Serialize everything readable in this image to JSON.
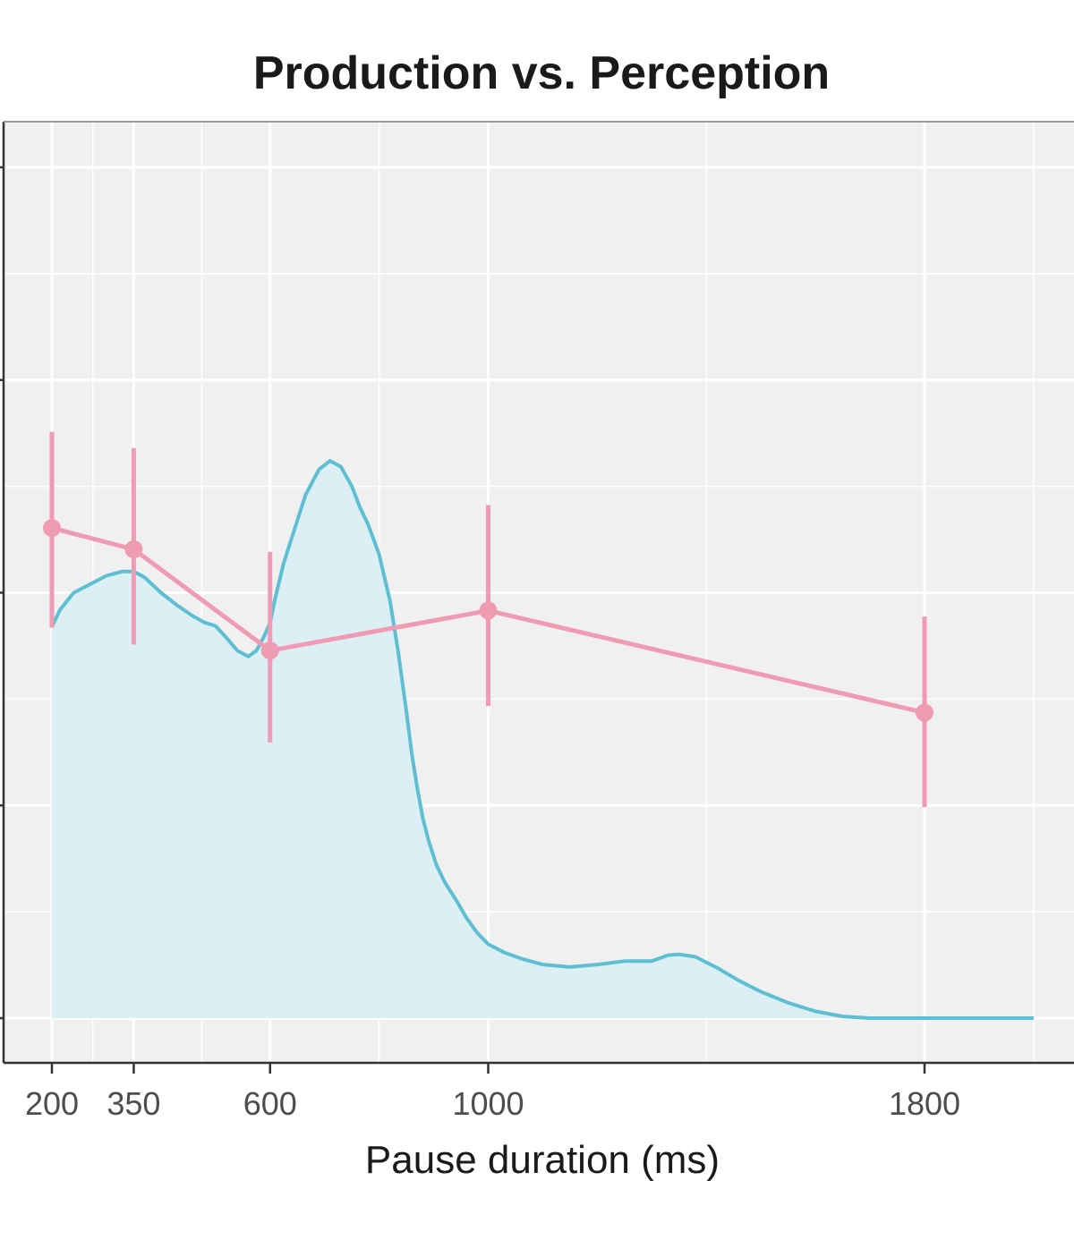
{
  "chart_data": {
    "type": "line",
    "title": "Production vs. Perception",
    "xlabel": "Pause duration (ms)",
    "ylabel": "",
    "xlim": [
      194,
      2050
    ],
    "x_ticks": [
      200,
      350,
      600,
      1000,
      1800
    ],
    "x_tick_labels": [
      "200",
      "350",
      "600",
      "1000",
      "1800"
    ],
    "grid": true,
    "legend": "none",
    "series": [
      {
        "kind": "points_with_error_bars",
        "color": "#f09bb4",
        "points": [
          {
            "x": 200,
            "y": 0.576,
            "lo": 0.459,
            "hi": 0.689
          },
          {
            "x": 350,
            "y": 0.551,
            "lo": 0.439,
            "hi": 0.67
          },
          {
            "x": 600,
            "y": 0.432,
            "lo": 0.324,
            "hi": 0.548
          },
          {
            "x": 1000,
            "y": 0.479,
            "lo": 0.367,
            "hi": 0.603
          },
          {
            "x": 1800,
            "y": 0.359,
            "lo": 0.248,
            "hi": 0.472
          }
        ]
      },
      {
        "kind": "density_area",
        "line_color": "#5dbfd1",
        "fill_color": "#dceff5",
        "x": [
          200,
          215,
          240,
          270,
          300,
          330,
          350,
          370,
          400,
          430,
          460,
          480,
          500,
          520,
          540,
          560,
          575,
          590,
          600,
          610,
          625,
          645,
          665,
          690,
          710,
          730,
          750,
          765,
          780,
          800,
          820,
          835,
          850,
          860,
          870,
          880,
          890,
          905,
          920,
          940,
          960,
          980,
          1000,
          1030,
          1060,
          1100,
          1150,
          1200,
          1250,
          1300,
          1330,
          1350,
          1380,
          1420,
          1460,
          1500,
          1550,
          1600,
          1650,
          1700,
          1750,
          1800,
          1850,
          1900,
          1950,
          2000
        ],
        "y": [
          0.46,
          0.48,
          0.5,
          0.51,
          0.52,
          0.525,
          0.525,
          0.518,
          0.5,
          0.485,
          0.472,
          0.465,
          0.461,
          0.447,
          0.432,
          0.425,
          0.432,
          0.45,
          0.465,
          0.495,
          0.535,
          0.575,
          0.615,
          0.645,
          0.655,
          0.648,
          0.625,
          0.6,
          0.58,
          0.545,
          0.49,
          0.43,
          0.36,
          0.31,
          0.27,
          0.235,
          0.21,
          0.18,
          0.16,
          0.14,
          0.118,
          0.1,
          0.087,
          0.077,
          0.07,
          0.063,
          0.06,
          0.063,
          0.067,
          0.067,
          0.074,
          0.075,
          0.072,
          0.059,
          0.044,
          0.031,
          0.018,
          0.008,
          0.002,
          0.0,
          0.0,
          0.0,
          0.0,
          0.0,
          0.0,
          0.0
        ]
      }
    ]
  }
}
